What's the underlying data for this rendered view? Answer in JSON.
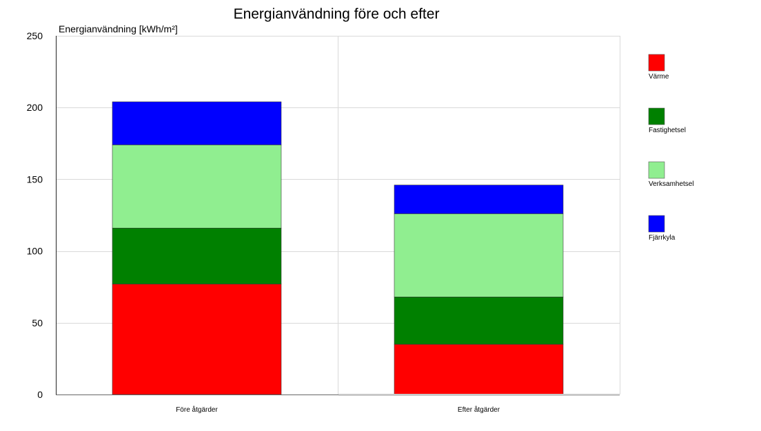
{
  "chart_data": {
    "type": "bar",
    "stacked": true,
    "title": "Energianvändning före och efter",
    "ylabel": "Energianvändning [kWh/m²]",
    "xlabel": "",
    "categories": [
      "Före åtgärder",
      "Efter åtgärder"
    ],
    "ylim": [
      0,
      250
    ],
    "yticks": [
      0,
      50,
      100,
      150,
      200,
      250
    ],
    "grid": true,
    "legend_position": "right",
    "series": [
      {
        "name": "Värme",
        "color": "#ff0000",
        "values": [
          77,
          35
        ]
      },
      {
        "name": "Fastighetsel",
        "color": "#008000",
        "values": [
          39,
          33
        ]
      },
      {
        "name": "Verksamhetsel",
        "color": "#90ee90",
        "values": [
          58,
          58
        ]
      },
      {
        "name": "Fjärrkyla",
        "color": "#0000ff",
        "values": [
          30,
          20
        ]
      }
    ]
  }
}
